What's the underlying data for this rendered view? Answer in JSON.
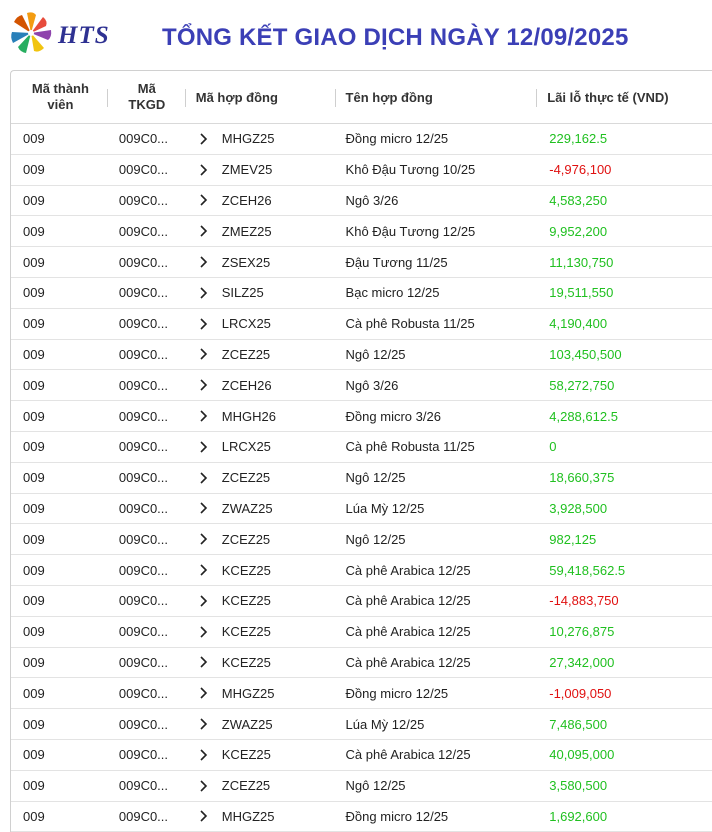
{
  "header": {
    "brand": "HTS",
    "title": "TỔNG KẾT GIAO DỊCH NGÀY 12/09/2025"
  },
  "table": {
    "columns": [
      "Mã thành viên",
      "Mã TKGD",
      "Mã hợp đồng",
      "Tên hợp đồng",
      "Lãi lỗ thực tế (VND)"
    ],
    "rows": [
      {
        "member": "009",
        "account": "009C0...",
        "code": "MHGZ25",
        "name": "Đồng micro 12/25",
        "pnl": "229,162.5",
        "sign": "pos"
      },
      {
        "member": "009",
        "account": "009C0...",
        "code": "ZMEV25",
        "name": "Khô Đậu Tương 10/25",
        "pnl": "-4,976,100",
        "sign": "neg"
      },
      {
        "member": "009",
        "account": "009C0...",
        "code": "ZCEH26",
        "name": "Ngô 3/26",
        "pnl": "4,583,250",
        "sign": "pos"
      },
      {
        "member": "009",
        "account": "009C0...",
        "code": "ZMEZ25",
        "name": "Khô Đậu Tương 12/25",
        "pnl": "9,952,200",
        "sign": "pos"
      },
      {
        "member": "009",
        "account": "009C0...",
        "code": "ZSEX25",
        "name": "Đậu Tương 11/25",
        "pnl": "11,130,750",
        "sign": "pos"
      },
      {
        "member": "009",
        "account": "009C0...",
        "code": "SILZ25",
        "name": "Bạc micro 12/25",
        "pnl": "19,511,550",
        "sign": "pos"
      },
      {
        "member": "009",
        "account": "009C0...",
        "code": "LRCX25",
        "name": "Cà phê Robusta 11/25",
        "pnl": "4,190,400",
        "sign": "pos"
      },
      {
        "member": "009",
        "account": "009C0...",
        "code": "ZCEZ25",
        "name": "Ngô 12/25",
        "pnl": "103,450,500",
        "sign": "pos"
      },
      {
        "member": "009",
        "account": "009C0...",
        "code": "ZCEH26",
        "name": "Ngô 3/26",
        "pnl": "58,272,750",
        "sign": "pos"
      },
      {
        "member": "009",
        "account": "009C0...",
        "code": "MHGH26",
        "name": "Đồng micro 3/26",
        "pnl": "4,288,612.5",
        "sign": "pos"
      },
      {
        "member": "009",
        "account": "009C0...",
        "code": "LRCX25",
        "name": "Cà phê Robusta 11/25",
        "pnl": "0",
        "sign": "zero"
      },
      {
        "member": "009",
        "account": "009C0...",
        "code": "ZCEZ25",
        "name": "Ngô 12/25",
        "pnl": "18,660,375",
        "sign": "pos"
      },
      {
        "member": "009",
        "account": "009C0...",
        "code": "ZWAZ25",
        "name": "Lúa Mỳ 12/25",
        "pnl": "3,928,500",
        "sign": "pos"
      },
      {
        "member": "009",
        "account": "009C0...",
        "code": "ZCEZ25",
        "name": "Ngô 12/25",
        "pnl": "982,125",
        "sign": "pos"
      },
      {
        "member": "009",
        "account": "009C0...",
        "code": "KCEZ25",
        "name": "Cà phê Arabica 12/25",
        "pnl": "59,418,562.5",
        "sign": "pos"
      },
      {
        "member": "009",
        "account": "009C0...",
        "code": "KCEZ25",
        "name": "Cà phê Arabica 12/25",
        "pnl": "-14,883,750",
        "sign": "neg"
      },
      {
        "member": "009",
        "account": "009C0...",
        "code": "KCEZ25",
        "name": "Cà phê Arabica 12/25",
        "pnl": "10,276,875",
        "sign": "pos"
      },
      {
        "member": "009",
        "account": "009C0...",
        "code": "KCEZ25",
        "name": "Cà phê Arabica 12/25",
        "pnl": "27,342,000",
        "sign": "pos"
      },
      {
        "member": "009",
        "account": "009C0...",
        "code": "MHGZ25",
        "name": "Đồng micro 12/25",
        "pnl": "-1,009,050",
        "sign": "neg"
      },
      {
        "member": "009",
        "account": "009C0...",
        "code": "ZWAZ25",
        "name": "Lúa Mỳ 12/25",
        "pnl": "7,486,500",
        "sign": "pos"
      },
      {
        "member": "009",
        "account": "009C0...",
        "code": "KCEZ25",
        "name": "Cà phê Arabica 12/25",
        "pnl": "40,095,000",
        "sign": "pos"
      },
      {
        "member": "009",
        "account": "009C0...",
        "code": "ZCEZ25",
        "name": "Ngô 12/25",
        "pnl": "3,580,500",
        "sign": "pos"
      },
      {
        "member": "009",
        "account": "009C0...",
        "code": "MHGZ25",
        "name": "Đồng micro 12/25",
        "pnl": "1,692,600",
        "sign": "pos"
      }
    ]
  },
  "colors": {
    "title": "#3b3fb6",
    "brand": "#2e3192",
    "positive": "#20c020",
    "negative": "#e01010"
  },
  "icons": {
    "logo": "hts-pinwheel-logo",
    "row_expand": "chevron-right-icon"
  }
}
